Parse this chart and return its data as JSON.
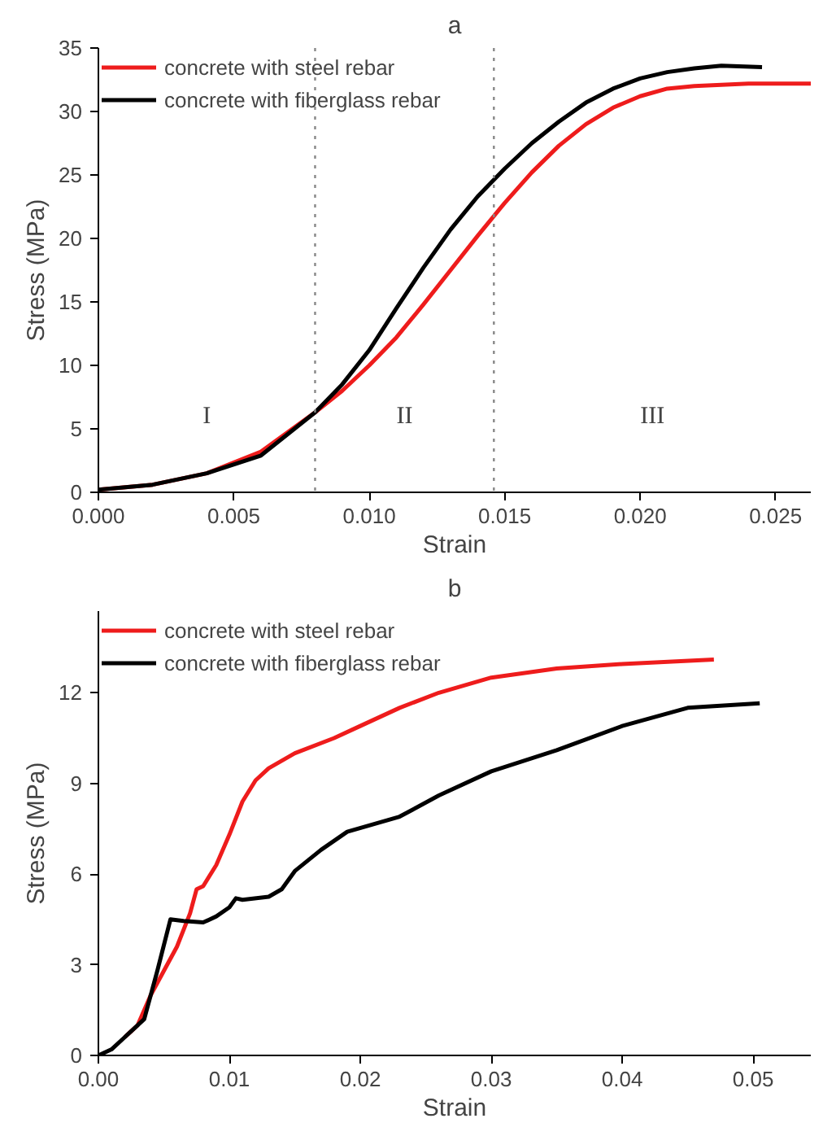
{
  "chart_data": [
    {
      "type": "line",
      "title": "a",
      "xlabel": "Strain",
      "ylabel": "Stress (MPa)",
      "xlim": [
        0,
        0.0263
      ],
      "xticks": [
        {
          "value": 0,
          "label": "0.000"
        },
        {
          "value": 0.005,
          "label": "0.005"
        },
        {
          "value": 0.01,
          "label": "0.010"
        },
        {
          "value": 0.015,
          "label": "0.015"
        },
        {
          "value": 0.02,
          "label": "0.020"
        },
        {
          "value": 0.025,
          "label": "0.025"
        }
      ],
      "ylim": [
        0,
        35
      ],
      "yticks": [
        0,
        5,
        10,
        15,
        20,
        25,
        30,
        35
      ],
      "grid": false,
      "legend": "top left",
      "series": [
        {
          "name": "concrete with steel rebar",
          "color": "#ee1c1c",
          "x": [
            0,
            0.002,
            0.004,
            0.006,
            0.008,
            0.009,
            0.01,
            0.011,
            0.012,
            0.013,
            0.014,
            0.015,
            0.016,
            0.017,
            0.018,
            0.019,
            0.02,
            0.021,
            0.022,
            0.024,
            0.0263
          ],
          "values": [
            0.2,
            0.6,
            1.5,
            3.2,
            6.3,
            8,
            10,
            12.2,
            14.8,
            17.5,
            20.2,
            22.8,
            25.2,
            27.3,
            29.0,
            30.3,
            31.2,
            31.8,
            32.0,
            32.2,
            32.2
          ]
        },
        {
          "name": "concrete with fiberglass rebar",
          "color": "#000000",
          "x": [
            0,
            0.002,
            0.004,
            0.006,
            0.008,
            0.009,
            0.01,
            0.011,
            0.012,
            0.013,
            0.014,
            0.015,
            0.016,
            0.017,
            0.018,
            0.019,
            0.02,
            0.021,
            0.022,
            0.023,
            0.0245
          ],
          "values": [
            0.2,
            0.6,
            1.5,
            2.9,
            6.3,
            8.5,
            11.2,
            14.5,
            17.7,
            20.7,
            23.3,
            25.5,
            27.5,
            29.2,
            30.7,
            31.8,
            32.6,
            33.1,
            33.4,
            33.6,
            33.5
          ]
        }
      ],
      "ref_lines": [
        {
          "axis": "x",
          "value": 0.008,
          "color": "#888888",
          "line_style": "dotted"
        },
        {
          "axis": "x",
          "value": 0.0146,
          "color": "#888888",
          "line_style": "dotted"
        }
      ],
      "annotations": [
        "I",
        "II",
        "III"
      ]
    },
    {
      "type": "line",
      "title": "b",
      "xlabel": "Strain",
      "ylabel": "Stress (MPa)",
      "xlim": [
        0,
        0.0544
      ],
      "xticks": [
        {
          "value": 0,
          "label": "0.00"
        },
        {
          "value": 0.01,
          "label": "0.01"
        },
        {
          "value": 0.02,
          "label": "0.02"
        },
        {
          "value": 0.03,
          "label": "0.03"
        },
        {
          "value": 0.04,
          "label": "0.04"
        },
        {
          "value": 0.05,
          "label": "0.05"
        }
      ],
      "ylim": [
        0,
        14.7
      ],
      "yticks": [
        0,
        3,
        6,
        9,
        12
      ],
      "grid": false,
      "legend": "top left",
      "series": [
        {
          "name": "concrete with steel rebar",
          "color": "#ee1c1c",
          "x": [
            0.002,
            0.003,
            0.004,
            0.005,
            0.006,
            0.007,
            0.0075,
            0.008,
            0.009,
            0.01,
            0.011,
            0.012,
            0.013,
            0.015,
            0.018,
            0.02,
            0.023,
            0.026,
            0.03,
            0.035,
            0.04,
            0.047
          ],
          "values": [
            0.6,
            1.0,
            2.0,
            2.8,
            3.6,
            4.7,
            5.5,
            5.6,
            6.3,
            7.3,
            8.4,
            9.1,
            9.5,
            10.0,
            10.5,
            10.9,
            11.5,
            12.0,
            12.5,
            12.8,
            12.95,
            13.1
          ]
        },
        {
          "name": "concrete with fiberglass rebar",
          "color": "#000000",
          "x": [
            0,
            0.001,
            0.002,
            0.003,
            0.0035,
            0.0045,
            0.0055,
            0.0065,
            0.008,
            0.009,
            0.01,
            0.0105,
            0.011,
            0.013,
            0.014,
            0.015,
            0.017,
            0.019,
            0.021,
            0.023,
            0.026,
            0.03,
            0.035,
            0.04,
            0.045,
            0.0505
          ],
          "values": [
            0,
            0.2,
            0.6,
            1.0,
            1.2,
            2.8,
            4.5,
            4.45,
            4.4,
            4.6,
            4.9,
            5.2,
            5.15,
            5.25,
            5.5,
            6.1,
            6.8,
            7.4,
            7.65,
            7.9,
            8.6,
            9.4,
            10.1,
            10.9,
            11.5,
            11.65
          ]
        }
      ]
    }
  ]
}
